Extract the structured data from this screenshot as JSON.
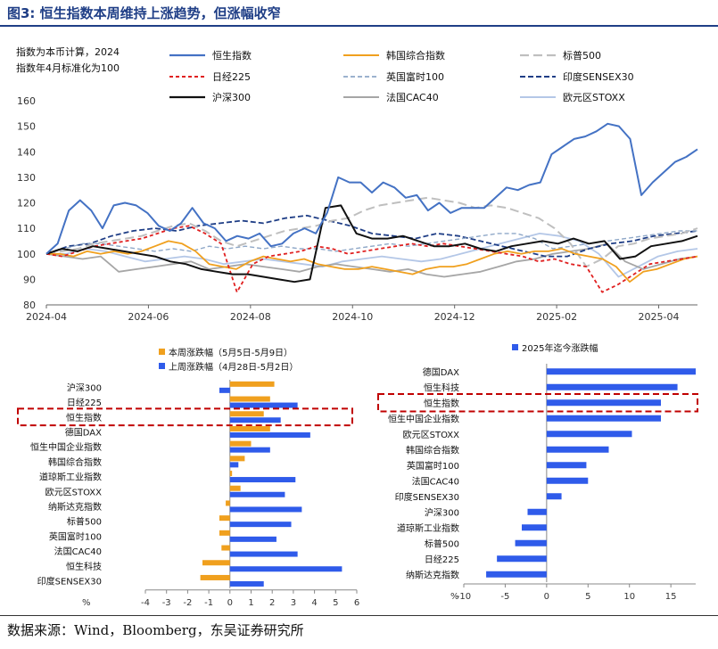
{
  "title": "图3:  恒生指数本周维持上涨趋势，但涨幅收窄",
  "source": "数据来源：Wind，Bloomberg，东吴证券研究所",
  "chart_data": [
    {
      "type": "line",
      "note_line1": "指数为本币计算，2024",
      "note_line2": "指数年4月标准化为100",
      "ylim": [
        80,
        160
      ],
      "yticks": [
        80,
        90,
        100,
        110,
        120,
        130,
        140,
        150,
        160
      ],
      "xticks": [
        "2024-04",
        "2024-06",
        "2024-08",
        "2024-10",
        "2024-12",
        "2025-02",
        "2025-04"
      ],
      "series": [
        {
          "name": "恒生指数",
          "color": "#4472c4",
          "dash": "",
          "width": 2,
          "values": [
            100,
            104,
            117,
            121,
            117,
            110,
            119,
            120,
            119,
            116,
            111,
            109,
            112,
            118,
            112,
            110,
            105,
            107,
            106,
            108,
            103,
            104,
            108,
            110,
            108,
            116,
            130,
            128,
            128,
            124,
            128,
            126,
            122,
            123,
            117,
            120,
            116,
            118,
            118,
            118,
            122,
            126,
            125,
            127,
            128,
            139,
            142,
            145,
            146,
            148,
            151,
            150,
            145,
            123,
            128,
            132,
            136,
            138,
            141
          ]
        },
        {
          "name": "韩国综合指数",
          "color": "#f0a01e",
          "dash": "",
          "width": 1.8,
          "values": [
            100,
            100,
            99,
            101,
            100,
            101,
            100,
            101,
            103,
            105,
            104,
            101,
            96,
            95,
            94,
            97,
            99,
            98,
            97,
            98,
            96,
            95,
            94,
            94,
            95,
            94,
            93,
            92,
            94,
            95,
            95,
            96,
            98,
            100,
            101,
            100,
            101,
            101,
            102,
            100,
            99,
            98,
            95,
            89,
            93,
            94,
            96,
            98,
            99
          ]
        },
        {
          "name": "标普500",
          "color": "#bfbfbf",
          "dash": "10,5",
          "width": 2,
          "values": [
            100,
            101,
            102,
            104,
            105,
            106,
            107,
            109,
            111,
            112,
            109,
            105,
            103,
            105,
            107,
            109,
            110,
            111,
            113,
            114,
            117,
            119,
            120,
            121,
            122,
            121,
            120,
            118,
            119,
            118,
            116,
            114,
            110,
            104,
            95,
            98,
            103,
            104,
            106,
            107,
            108,
            110
          ]
        },
        {
          "name": "日经225",
          "color": "#e02020",
          "dash": "4,3",
          "width": 1.8,
          "values": [
            100,
            99,
            101,
            103,
            104,
            105,
            106,
            108,
            110,
            111,
            108,
            104,
            85,
            96,
            99,
            100,
            101,
            103,
            102,
            100,
            101,
            102,
            103,
            104,
            103,
            104,
            103,
            102,
            101,
            100,
            99,
            97,
            98,
            96,
            95,
            85,
            88,
            92,
            96,
            97,
            98,
            99
          ]
        },
        {
          "name": "英国富时100",
          "color": "#8fa8c8",
          "dash": "5,3",
          "width": 1.4,
          "values": [
            100,
            102,
            104,
            104,
            103,
            102,
            101,
            102,
            101,
            103,
            102,
            103,
            102,
            103,
            102,
            102,
            101,
            102,
            103,
            104,
            103,
            104,
            105,
            106,
            107,
            108,
            108,
            106,
            102,
            103,
            104,
            105,
            106,
            107,
            108,
            109,
            109
          ]
        },
        {
          "name": "印度SENSEX30",
          "color": "#1f3e86",
          "dash": "6,3",
          "width": 1.8,
          "values": [
            100,
            103,
            104,
            107,
            109,
            110,
            109,
            111,
            112,
            113,
            112,
            114,
            115,
            113,
            111,
            108,
            107,
            106,
            108,
            107,
            105,
            103,
            101,
            99,
            99,
            102,
            104,
            105,
            107,
            108,
            109
          ]
        },
        {
          "name": "沪深300",
          "color": "#111111",
          "dash": "",
          "width": 2,
          "values": [
            100,
            102,
            101,
            103,
            102,
            101,
            100,
            99,
            97,
            96,
            94,
            93,
            92,
            92,
            91,
            90,
            89,
            90,
            118,
            119,
            108,
            106,
            106,
            107,
            105,
            103,
            103,
            104,
            102,
            101,
            103,
            104,
            105,
            104,
            106,
            104,
            105,
            98,
            99,
            103,
            104,
            105,
            107
          ]
        },
        {
          "name": "法国CAC40",
          "color": "#a6a6a6",
          "dash": "",
          "width": 1.8,
          "values": [
            100,
            99,
            98,
            99,
            93,
            94,
            95,
            96,
            97,
            94,
            95,
            96,
            95,
            94,
            93,
            95,
            96,
            95,
            94,
            93,
            94,
            92,
            91,
            92,
            93,
            95,
            97,
            98,
            100,
            101,
            102,
            104,
            97,
            94,
            96,
            98,
            99
          ]
        },
        {
          "name": "欧元区STOXX",
          "color": "#b4c7e7",
          "dash": "",
          "width": 1.8,
          "values": [
            100,
            100,
            102,
            101,
            99,
            97,
            98,
            99,
            98,
            96,
            97,
            98,
            97,
            96,
            95,
            97,
            98,
            99,
            98,
            97,
            98,
            100,
            102,
            104,
            106,
            108,
            107,
            105,
            100,
            91,
            95,
            99,
            101,
            102
          ]
        }
      ]
    },
    {
      "type": "bar",
      "orientation": "horizontal",
      "categories": [
        "沪深300",
        "日经225",
        "恒生指数",
        "德国DAX",
        "恒生中国企业指数",
        "韩国综合指数",
        "道琼斯工业指数",
        "欧元区STOXX",
        "纳斯达克指数",
        "标普500",
        "英国富时100",
        "法国CAC40",
        "恒生科技",
        "印度SENSEX30"
      ],
      "series": [
        {
          "name": "本周涨跌幅（5月5日-5月9日）",
          "color": "#f0a01e",
          "values": [
            2.1,
            1.9,
            1.6,
            1.9,
            1.0,
            0.7,
            0.1,
            0.5,
            -0.2,
            -0.5,
            -0.5,
            -0.4,
            -1.3,
            -1.4
          ]
        },
        {
          "name": "上周涨跌幅（4月28日-5月2日）",
          "color": "#2f5bea",
          "values": [
            -0.5,
            3.2,
            2.4,
            3.8,
            1.9,
            0.4,
            3.1,
            2.6,
            3.4,
            2.9,
            2.2,
            3.2,
            5.3,
            1.6
          ]
        }
      ],
      "highlight": "恒生指数",
      "xlim": [
        -4,
        6
      ],
      "xticks": [
        -4,
        -3,
        -2,
        -1,
        0,
        1,
        2,
        3,
        4,
        5,
        6
      ],
      "xunit": "%"
    },
    {
      "type": "bar",
      "orientation": "horizontal",
      "categories": [
        "德国DAX",
        "恒生科技",
        "恒生指数",
        "恒生中国企业指数",
        "欧元区STOXX",
        "韩国综合指数",
        "英国富时100",
        "法国CAC40",
        "印度SENSEX30",
        "沪深300",
        "道琼斯工业指数",
        "标普500",
        "日经225",
        "纳斯达克指数"
      ],
      "series": [
        {
          "name": "2025年迄今涨跌幅",
          "color": "#2f5bea",
          "values": [
            18.0,
            15.8,
            13.8,
            13.8,
            10.3,
            7.5,
            4.8,
            5.0,
            1.8,
            -2.3,
            -3.0,
            -3.8,
            -6.0,
            -7.3
          ]
        }
      ],
      "highlight": "恒生指数",
      "xlim": [
        -10,
        18
      ],
      "xticks": [
        -10,
        -5,
        0,
        5,
        10,
        15
      ],
      "xunit": "%"
    }
  ]
}
